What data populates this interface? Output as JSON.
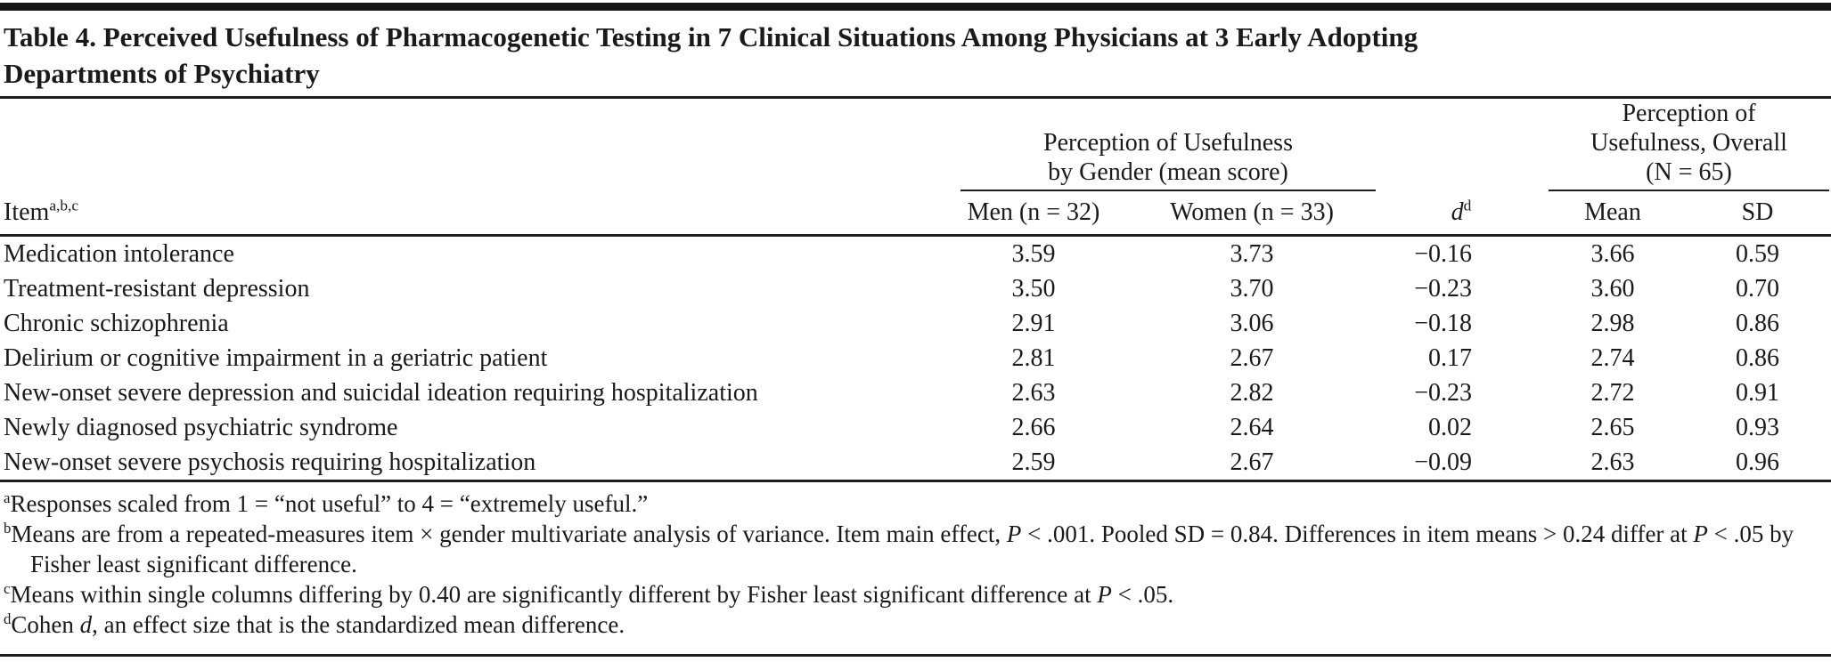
{
  "title": {
    "line1": "Table 4. Perceived Usefulness of Pharmacogenetic Testing in 7 Clinical Situations Among Physicians at 3 Early Adopting",
    "line2": "Departments of Psychiatry"
  },
  "colors": {
    "background": "#ffffff",
    "text": "#1a1a1a",
    "rule": "#1e1e1e"
  },
  "header": {
    "item": {
      "label": "Item",
      "sup": "a,b,c"
    },
    "gender_group": {
      "line1": "Perception of Usefulness",
      "line2": "by Gender (mean score)"
    },
    "overall_group": {
      "line1": "Perception of",
      "line2": "Usefulness, Overall",
      "line3": "(N = 65)"
    },
    "men": "Men (n = 32)",
    "women": "Women (n = 33)",
    "d": {
      "label": "d",
      "sup": "d"
    },
    "mean": "Mean",
    "sd": "SD"
  },
  "rows": [
    {
      "item": "Medication intolerance",
      "men": "3.59",
      "women": "3.73",
      "d": "−0.16",
      "mean": "3.66",
      "sd": "0.59"
    },
    {
      "item": "Treatment-resistant depression",
      "men": "3.50",
      "women": "3.70",
      "d": "−0.23",
      "mean": "3.60",
      "sd": "0.70"
    },
    {
      "item": "Chronic schizophrenia",
      "men": "2.91",
      "women": "3.06",
      "d": "−0.18",
      "mean": "2.98",
      "sd": "0.86"
    },
    {
      "item": "Delirium or cognitive impairment in a geriatric patient",
      "men": "2.81",
      "women": "2.67",
      "d": "0.17",
      "mean": "2.74",
      "sd": "0.86"
    },
    {
      "item": "New-onset severe depression and suicidal ideation requiring hospitalization",
      "men": "2.63",
      "women": "2.82",
      "d": "−0.23",
      "mean": "2.72",
      "sd": "0.91"
    },
    {
      "item": "Newly diagnosed psychiatric syndrome",
      "men": "2.66",
      "women": "2.64",
      "d": "0.02",
      "mean": "2.65",
      "sd": "0.93"
    },
    {
      "item": "New-onset severe psychosis requiring hospitalization",
      "men": "2.59",
      "women": "2.67",
      "d": "−0.09",
      "mean": "2.63",
      "sd": "0.96"
    }
  ],
  "footnotes": [
    {
      "segments": [
        {
          "text": "a",
          "sup": true
        },
        {
          "text": "Responses scaled from 1 = “not useful” to 4 = “extremely useful.”"
        }
      ]
    },
    {
      "segments": [
        {
          "text": "b",
          "sup": true
        },
        {
          "text": "Means are from a repeated-measures item × gender multivariate analysis of variance. Item main effect, "
        },
        {
          "text": "P",
          "italic": true
        },
        {
          "text": " < .001. Pooled SD = 0.84. Differences in item means > 0.24 differ at "
        },
        {
          "text": "P",
          "italic": true
        },
        {
          "text": " < .05 by Fisher least significant difference."
        }
      ]
    },
    {
      "segments": [
        {
          "text": "c",
          "sup": true
        },
        {
          "text": "Means within single columns differing by 0.40 are significantly different by Fisher least significant difference at "
        },
        {
          "text": "P",
          "italic": true
        },
        {
          "text": " < .05."
        }
      ]
    },
    {
      "segments": [
        {
          "text": "d",
          "sup": true
        },
        {
          "text": "Cohen "
        },
        {
          "text": "d",
          "italic": true
        },
        {
          "text": ", an effect size that is the standardized mean difference."
        }
      ]
    }
  ]
}
